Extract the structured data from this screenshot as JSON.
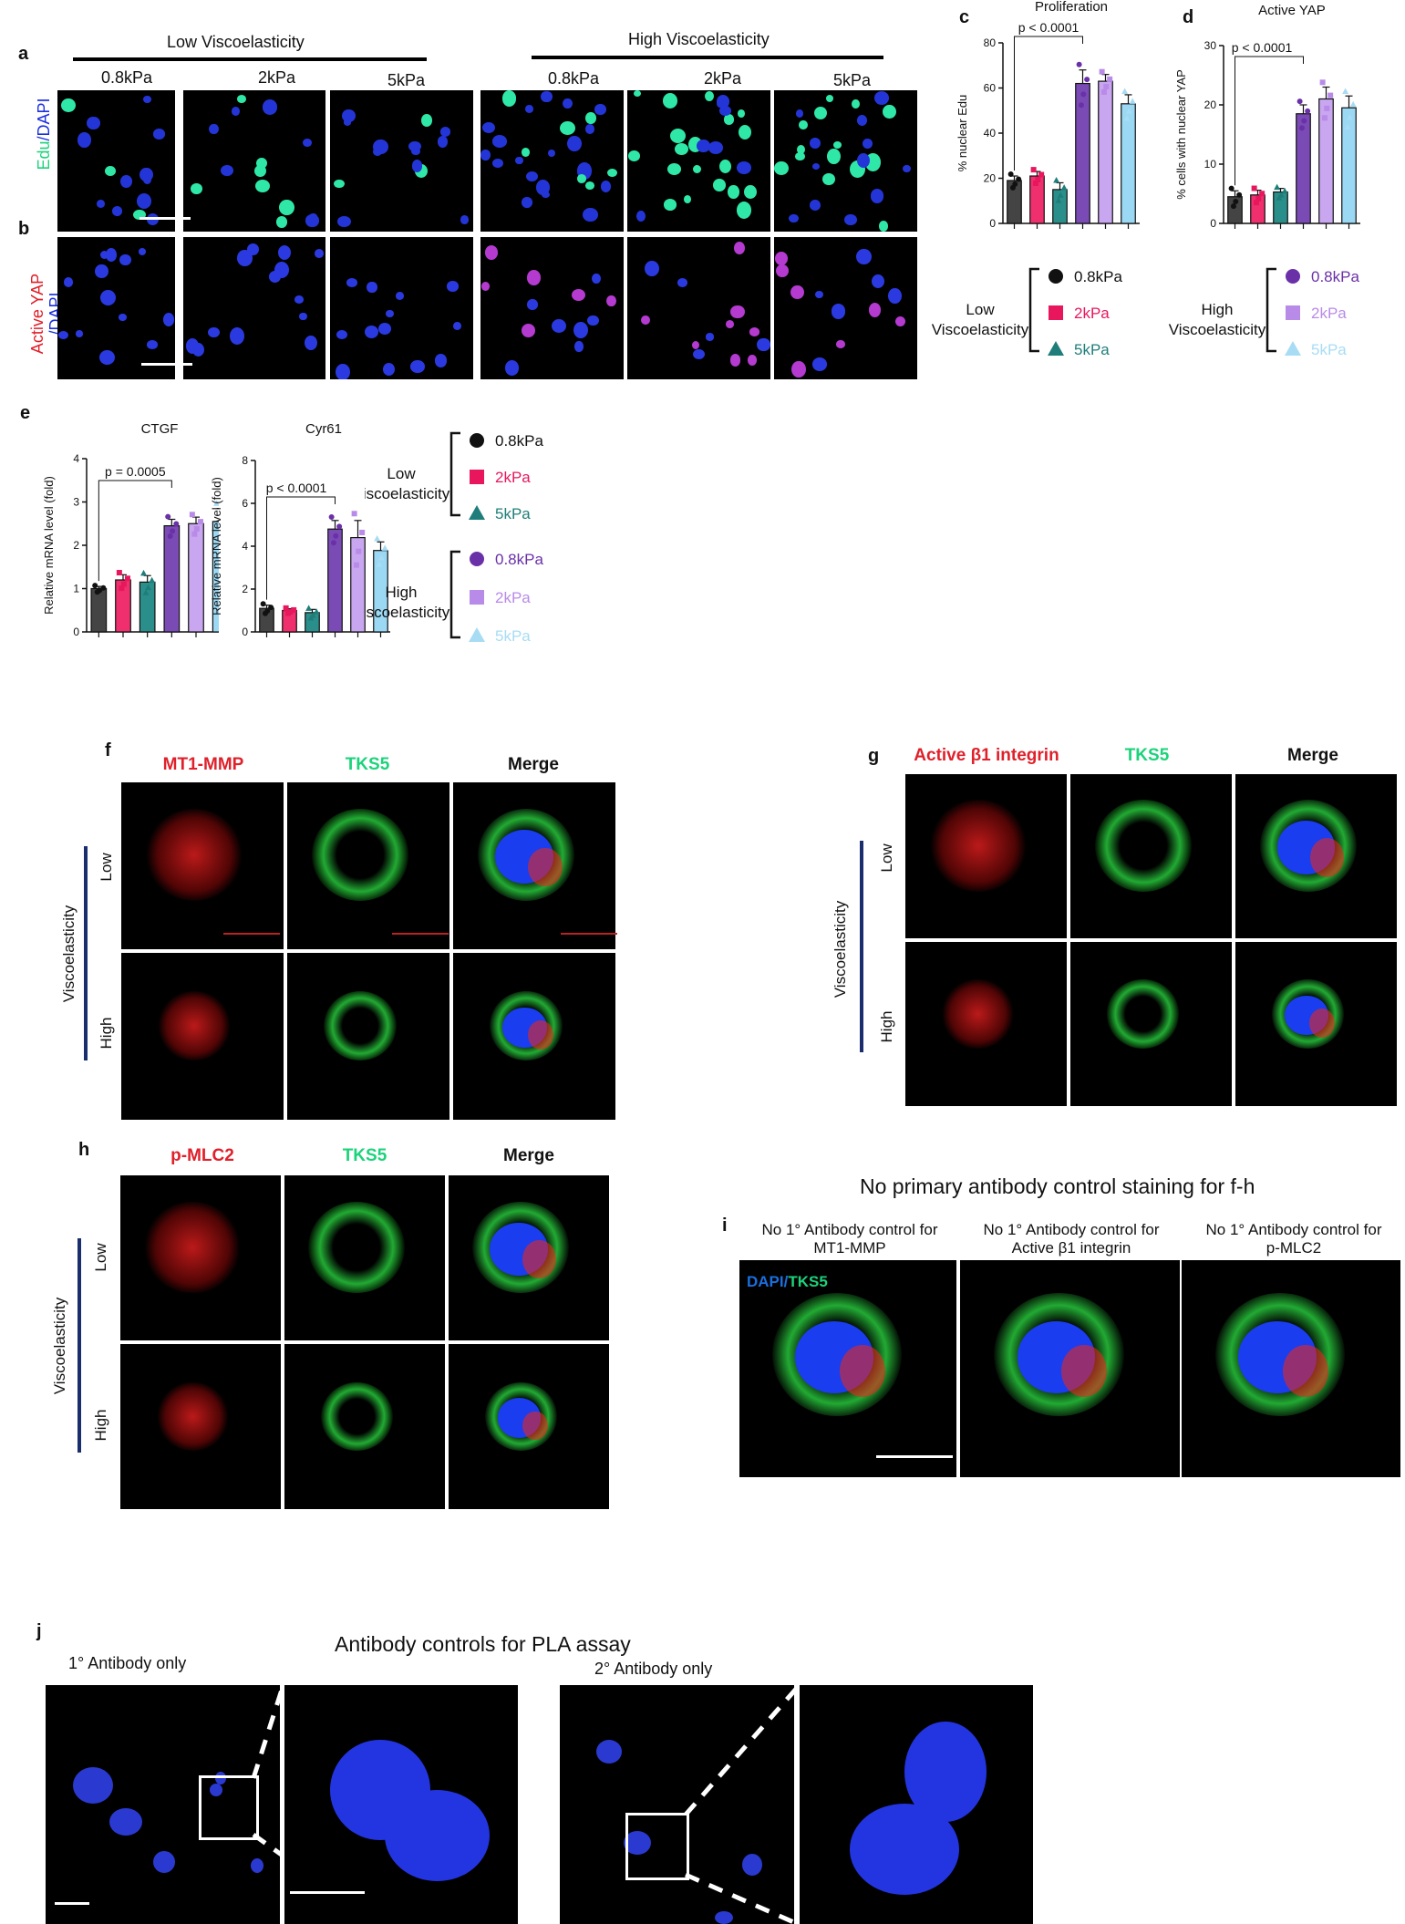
{
  "panel_letters": {
    "a": "a",
    "b": "b",
    "c": "c",
    "d": "d",
    "e": "e",
    "f": "f",
    "g": "g",
    "h": "h",
    "i": "i",
    "j": "j"
  },
  "panel_a": {
    "group_low": "Low Viscoelasticity",
    "group_high": "High Viscoelasticity",
    "columns": [
      "0.8kPa",
      "2kPa",
      "5kPa",
      "0.8kPa",
      "2kPa",
      "5kPa"
    ],
    "row_label_a": [
      "Edu",
      "/",
      "DAPI"
    ],
    "row_label_b": [
      "Active YAP",
      "/DAPI"
    ]
  },
  "chart_c": {
    "type": "bar",
    "title": "Proliferation",
    "ylabel": "% nuclear Edu",
    "ylim": [
      0,
      80
    ],
    "yticks": [
      0,
      20,
      40,
      60,
      80
    ],
    "categories": [
      "0.8kPa",
      "2kPa",
      "5kPa",
      "0.8kPa",
      "2kPa",
      "5kPa"
    ],
    "values": [
      19,
      21,
      15,
      62,
      63,
      53
    ],
    "errors": [
      2,
      2,
      3,
      6,
      3,
      4
    ],
    "colors": [
      "#444444",
      "#f0306e",
      "#2a8f8a",
      "#7a4bb5",
      "#c9a6f0",
      "#9ad8f4"
    ],
    "pvalue": "p < 0.0001"
  },
  "chart_d": {
    "type": "bar",
    "title": "Active YAP",
    "ylabel": "% cells with nuclear YAP",
    "ylim": [
      0,
      30
    ],
    "yticks": [
      0,
      10,
      20,
      30
    ],
    "categories": [
      "0.8kPa",
      "2kPa",
      "5kPa",
      "0.8kPa",
      "2kPa",
      "5kPa"
    ],
    "values": [
      4.5,
      4.8,
      5.3,
      18.5,
      21,
      19.5
    ],
    "errors": [
      1,
      0.8,
      0.6,
      1.5,
      2,
      2
    ],
    "colors": [
      "#444444",
      "#f0306e",
      "#2a8f8a",
      "#7a4bb5",
      "#c9a6f0",
      "#9ad8f4"
    ],
    "pvalue": "p < 0.0001"
  },
  "chart_e1": {
    "type": "bar",
    "title": "CTGF",
    "ylabel": "Relative mRNA level (fold)",
    "ylim": [
      0,
      4
    ],
    "yticks": [
      0,
      1,
      2,
      3,
      4
    ],
    "values": [
      1.0,
      1.2,
      1.15,
      2.45,
      2.5,
      2.55
    ],
    "errors": [
      0.05,
      0.12,
      0.15,
      0.15,
      0.15,
      0.3
    ],
    "colors": [
      "#444444",
      "#f0306e",
      "#2a8f8a",
      "#7a4bb5",
      "#c9a6f0",
      "#9ad8f4"
    ],
    "pvalue": "p = 0.0005"
  },
  "chart_e2": {
    "type": "bar",
    "title": "Cyr61",
    "ylabel": "Relative mRNA level (fold)",
    "ylim": [
      0,
      8
    ],
    "yticks": [
      0,
      2,
      4,
      6,
      8
    ],
    "values": [
      1.1,
      1.0,
      0.9,
      4.8,
      4.4,
      3.8
    ],
    "errors": [
      0.15,
      0.08,
      0.15,
      0.4,
      0.8,
      0.4
    ],
    "colors": [
      "#444444",
      "#f0306e",
      "#2a8f8a",
      "#7a4bb5",
      "#c9a6f0",
      "#9ad8f4"
    ],
    "pvalue": "p < 0.0001"
  },
  "legend": {
    "low_label": [
      "Low",
      "Viscoelasticity"
    ],
    "high_label": [
      "High",
      "Viscoelasticity"
    ],
    "low_items": [
      {
        "label": "0.8kPa",
        "color": "#111111",
        "shape": "circle"
      },
      {
        "label": "2kPa",
        "color": "#e8175d",
        "shape": "square"
      },
      {
        "label": "5kPa",
        "color": "#1f7e7a",
        "shape": "triangle"
      }
    ],
    "high_items": [
      {
        "label": "0.8kPa",
        "color": "#6a30a8",
        "shape": "circle"
      },
      {
        "label": "2kPa",
        "color": "#b98be8",
        "shape": "square"
      },
      {
        "label": "5kPa",
        "color": "#a8dcf4",
        "shape": "triangle"
      }
    ]
  },
  "panel_f": {
    "headers": [
      "MT1-MMP",
      "TKS5",
      "Merge"
    ],
    "rows": [
      "Low",
      "High"
    ],
    "axis": "Viscoelasticity"
  },
  "panel_g": {
    "headers": [
      "Active β1 integrin",
      "TKS5",
      "Merge"
    ],
    "rows": [
      "Low",
      "High"
    ],
    "axis": "Viscoelasticity"
  },
  "panel_h": {
    "headers": [
      "p-MLC2",
      "TKS5",
      "Merge"
    ],
    "rows": [
      "Low",
      "High"
    ],
    "axis": "Viscoelasticity"
  },
  "panel_i": {
    "title": "No primary antibody control staining for f-h",
    "col_labels": [
      [
        "No 1° Antibody control for",
        "MT1-MMP"
      ],
      [
        "No 1° Antibody control for",
        "Active β1 integrin"
      ],
      [
        "No 1° Antibody control for",
        "p-MLC2"
      ]
    ],
    "stain_label": [
      "DAPI",
      "/",
      "TKS5"
    ]
  },
  "panel_j": {
    "title": "Antibody controls for PLA assay",
    "left": "1° Antibody only",
    "right": "2° Antibody only"
  },
  "colors": {
    "red": "#e0202a",
    "green": "#1bd37a",
    "blue": "#1a2fe0"
  }
}
